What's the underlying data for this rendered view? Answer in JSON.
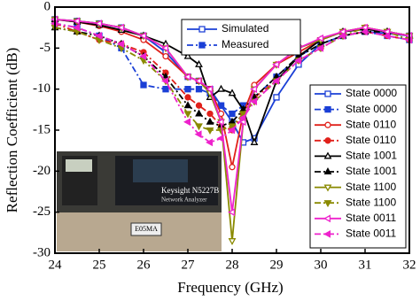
{
  "chart_data": {
    "type": "line",
    "x_label": "Frequency (GHz)",
    "y_label": "Reflection Coefficient (dB)",
    "x": [
      24,
      24.5,
      25,
      25.5,
      26,
      26.5,
      27,
      27.25,
      27.5,
      27.75,
      28,
      28.25,
      28.5,
      29,
      29.5,
      30,
      30.5,
      31,
      31.5,
      32
    ],
    "xlim": [
      24,
      32
    ],
    "xticks": [
      24,
      25,
      26,
      27,
      28,
      29,
      30,
      31,
      32
    ],
    "ylim": [
      -30,
      0
    ],
    "yticks": [
      0,
      -5,
      -10,
      -15,
      -20,
      -25,
      -30
    ],
    "style_legend": [
      "Simulated",
      "Measured"
    ],
    "inset_labels": [
      "Keysight N5227B",
      "Network Analyzer",
      "E05MA"
    ],
    "series": [
      {
        "name": "State 0000",
        "color": "#1a3fd6",
        "style": "solid",
        "marker": "square",
        "filled": false,
        "values": [
          -1.5,
          -1.7,
          -2,
          -2.5,
          -3.5,
          -5.5,
          -8.5,
          -9,
          -10,
          -12,
          -14,
          -16.5,
          -16,
          -11,
          -7,
          -4.5,
          -3.5,
          -3,
          -3.2,
          -3.5
        ]
      },
      {
        "name": "State 0000",
        "color": "#1a3fd6",
        "style": "dashdot",
        "marker": "square",
        "filled": true,
        "values": [
          -2,
          -2.5,
          -3.5,
          -5,
          -9.5,
          -10,
          -10,
          -10,
          -10.5,
          -12,
          -13,
          -12,
          -11,
          -8.5,
          -6,
          -4.5,
          -3.5,
          -3,
          -3.5,
          -4
        ]
      },
      {
        "name": "State 0110",
        "color": "#e0201a",
        "style": "solid",
        "marker": "circle",
        "filled": false,
        "values": [
          -1.5,
          -1.8,
          -2.3,
          -3,
          -4,
          -6,
          -8.5,
          -9,
          -10,
          -13,
          -19.5,
          -13,
          -9.5,
          -7,
          -5.5,
          -4,
          -3,
          -2.5,
          -3,
          -3.5
        ]
      },
      {
        "name": "State 0110",
        "color": "#e0201a",
        "style": "dashdot",
        "marker": "circle",
        "filled": true,
        "values": [
          -2,
          -3,
          -4,
          -4.5,
          -5.5,
          -8,
          -11,
          -12,
          -13,
          -14.5,
          -15,
          -13,
          -11,
          -9,
          -6.5,
          -5,
          -3.5,
          -3,
          -3.5,
          -4
        ]
      },
      {
        "name": "State 1001",
        "color": "#000000",
        "style": "solid",
        "marker": "triangle",
        "filled": false,
        "values": [
          -1.5,
          -1.8,
          -2.2,
          -2.8,
          -3.5,
          -4.5,
          -6,
          -7,
          -11,
          -10,
          -10.5,
          -12.5,
          -16.5,
          -9,
          -6,
          -4,
          -3,
          -2.7,
          -3,
          -3.5
        ]
      },
      {
        "name": "State 1001",
        "color": "#000000",
        "style": "dashdot",
        "marker": "triangle",
        "filled": true,
        "values": [
          -2.5,
          -3,
          -3.5,
          -4.5,
          -6,
          -8.5,
          -12,
          -13,
          -14,
          -14.5,
          -14,
          -12.5,
          -11,
          -8.5,
          -6,
          -4.5,
          -3.5,
          -3,
          -3,
          -3.5
        ]
      },
      {
        "name": "State 1100",
        "color": "#8a8a00",
        "style": "solid",
        "marker": "down",
        "filled": false,
        "values": [
          -1.5,
          -1.7,
          -2,
          -2.5,
          -3.5,
          -5,
          -8.5,
          -9,
          -10.5,
          -14,
          -28.5,
          -14,
          -10,
          -7,
          -5,
          -4,
          -3,
          -2.5,
          -3,
          -3.5
        ]
      },
      {
        "name": "State 1100",
        "color": "#8a8a00",
        "style": "dashdot",
        "marker": "down",
        "filled": true,
        "values": [
          -2.5,
          -3,
          -4,
          -5,
          -6.5,
          -9,
          -13,
          -14.5,
          -15,
          -15,
          -14.5,
          -13,
          -11.5,
          -9,
          -6.5,
          -5,
          -3.5,
          -2.5,
          -3,
          -4
        ]
      },
      {
        "name": "State 0011",
        "color": "#ee22cc",
        "style": "solid",
        "marker": "left",
        "filled": false,
        "values": [
          -1.5,
          -1.7,
          -2,
          -2.5,
          -3.5,
          -5,
          -8.5,
          -9,
          -10,
          -14,
          -25,
          -14,
          -10,
          -7,
          -5,
          -3.8,
          -3,
          -2.5,
          -3,
          -3.5
        ]
      },
      {
        "name": "State 0011",
        "color": "#ee22cc",
        "style": "dashdot",
        "marker": "left",
        "filled": true,
        "values": [
          -2,
          -2.5,
          -3.5,
          -4.5,
          -6,
          -9,
          -14,
          -15.5,
          -16.5,
          -16,
          -15,
          -13.5,
          -11.5,
          -9,
          -6.5,
          -5,
          -3.5,
          -3,
          -3.5,
          -4
        ]
      }
    ]
  }
}
